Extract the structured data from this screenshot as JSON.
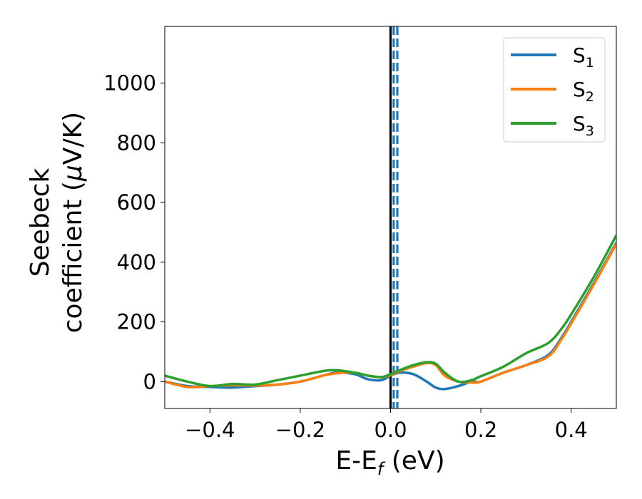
{
  "chart_data": {
    "type": "line",
    "xlabel": {
      "main": "E-E",
      "sub": "f",
      "tail": " (eV)"
    },
    "ylabel": {
      "line1": "Seebeck",
      "line2_pre": "coefficient  (",
      "mu": "μ",
      "line2_post": "V/K)"
    },
    "xlim": [
      -0.5,
      0.5
    ],
    "ylim": [
      -90,
      1190
    ],
    "xticks": [
      -0.4,
      -0.2,
      0.0,
      0.2,
      0.4
    ],
    "xtick_labels": [
      "−0.4",
      "−0.2",
      "0.0",
      "0.2",
      "0.4"
    ],
    "yticks": [
      0,
      200,
      400,
      600,
      800,
      1000
    ],
    "ytick_labels": [
      "0",
      "200",
      "400",
      "600",
      "800",
      "1000"
    ],
    "legend_position": "top-right",
    "vlines": [
      {
        "x": 0.0,
        "color": "#000000",
        "style": "solid"
      },
      {
        "x": 0.007,
        "color": "#1f77b4",
        "style": "dashed"
      },
      {
        "x": 0.015,
        "color": "#1f77b4",
        "style": "dashed"
      }
    ],
    "series": [
      {
        "name": "S",
        "sub": "1",
        "color": "#1f77b4",
        "x": [
          -0.5,
          -0.45,
          -0.4,
          -0.35,
          -0.3,
          -0.25,
          -0.2,
          -0.15,
          -0.12,
          -0.08,
          -0.05,
          -0.02,
          0.0,
          0.02,
          0.05,
          0.08,
          0.1,
          0.12,
          0.15,
          0.18,
          0.2,
          0.25,
          0.3,
          0.35,
          0.38,
          0.4,
          0.45,
          0.5
        ],
        "values": [
          0,
          -15,
          -18,
          -20,
          -15,
          -10,
          0,
          20,
          30,
          25,
          8,
          5,
          20,
          30,
          25,
          0,
          -20,
          -25,
          -15,
          0,
          0,
          30,
          55,
          90,
          150,
          200,
          330,
          465
        ]
      },
      {
        "name": "S",
        "sub": "2",
        "color": "#ff7f0e",
        "x": [
          -0.5,
          -0.45,
          -0.4,
          -0.35,
          -0.3,
          -0.25,
          -0.2,
          -0.15,
          -0.12,
          -0.08,
          -0.05,
          -0.02,
          0.0,
          0.02,
          0.05,
          0.08,
          0.1,
          0.12,
          0.15,
          0.18,
          0.2,
          0.25,
          0.3,
          0.35,
          0.38,
          0.4,
          0.45,
          0.5
        ],
        "values": [
          0,
          -18,
          -15,
          -12,
          -13,
          -10,
          0,
          20,
          28,
          30,
          20,
          15,
          22,
          35,
          50,
          62,
          55,
          20,
          0,
          -3,
          0,
          30,
          55,
          85,
          145,
          195,
          325,
          462
        ]
      },
      {
        "name": "S",
        "sub": "3",
        "color": "#2ca02c",
        "x": [
          -0.5,
          -0.45,
          -0.4,
          -0.35,
          -0.3,
          -0.25,
          -0.2,
          -0.15,
          -0.12,
          -0.08,
          -0.05,
          -0.02,
          0.0,
          0.02,
          0.05,
          0.08,
          0.1,
          0.12,
          0.15,
          0.18,
          0.2,
          0.25,
          0.3,
          0.35,
          0.38,
          0.4,
          0.45,
          0.5
        ],
        "values": [
          20,
          0,
          -15,
          -8,
          -10,
          5,
          20,
          35,
          38,
          30,
          20,
          15,
          25,
          38,
          55,
          65,
          60,
          30,
          0,
          5,
          18,
          50,
          95,
          130,
          180,
          225,
          350,
          490
        ]
      }
    ]
  }
}
